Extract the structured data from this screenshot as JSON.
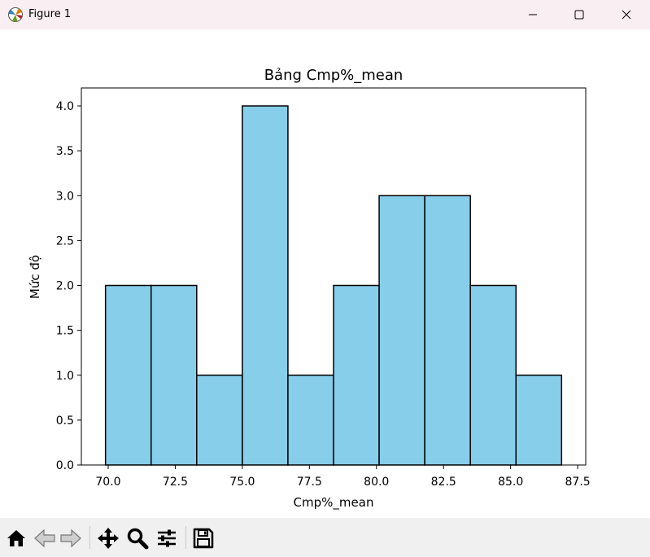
{
  "window": {
    "title": "Figure 1",
    "icons": [
      "matplotlib-icon",
      "minimize-icon",
      "maximize-icon",
      "close-icon"
    ]
  },
  "toolbar": {
    "buttons": [
      "home-icon",
      "back-icon",
      "forward-icon",
      "pan-icon",
      "zoom-icon",
      "configure-subplots-icon",
      "save-icon"
    ]
  },
  "colors": {
    "bar_fill": "#87ceeb",
    "bar_edge": "#000000",
    "titlebar_bg": "#f9eef2",
    "toolbar_bg": "#f0f0f0"
  },
  "chart_data": {
    "type": "bar",
    "title": "Bảng Cmp%_mean",
    "xlabel": "Cmp%_mean",
    "ylabel": "Mức độ",
    "bin_edges": [
      69.9,
      71.6,
      73.3,
      75.0,
      76.7,
      78.4,
      80.1,
      81.8,
      83.5,
      85.2,
      86.9
    ],
    "values": [
      2,
      2,
      1,
      4,
      1,
      2,
      3,
      3,
      2,
      1
    ],
    "xlim": [
      69.0,
      87.8
    ],
    "ylim": [
      0,
      4.2
    ],
    "xticks": [
      70.0,
      72.5,
      75.0,
      77.5,
      80.0,
      82.5,
      85.0,
      87.5
    ],
    "xtick_labels": [
      "70.0",
      "72.5",
      "75.0",
      "77.5",
      "80.0",
      "82.5",
      "85.0",
      "87.5"
    ],
    "yticks": [
      0,
      0.5,
      1,
      1.5,
      2,
      2.5,
      3,
      3.5,
      4
    ],
    "ytick_labels": [
      "0.0",
      "0.5",
      "1.0",
      "1.5",
      "2.0",
      "2.5",
      "3.0",
      "3.5",
      "4.0"
    ],
    "grid": false,
    "legend": "none"
  }
}
